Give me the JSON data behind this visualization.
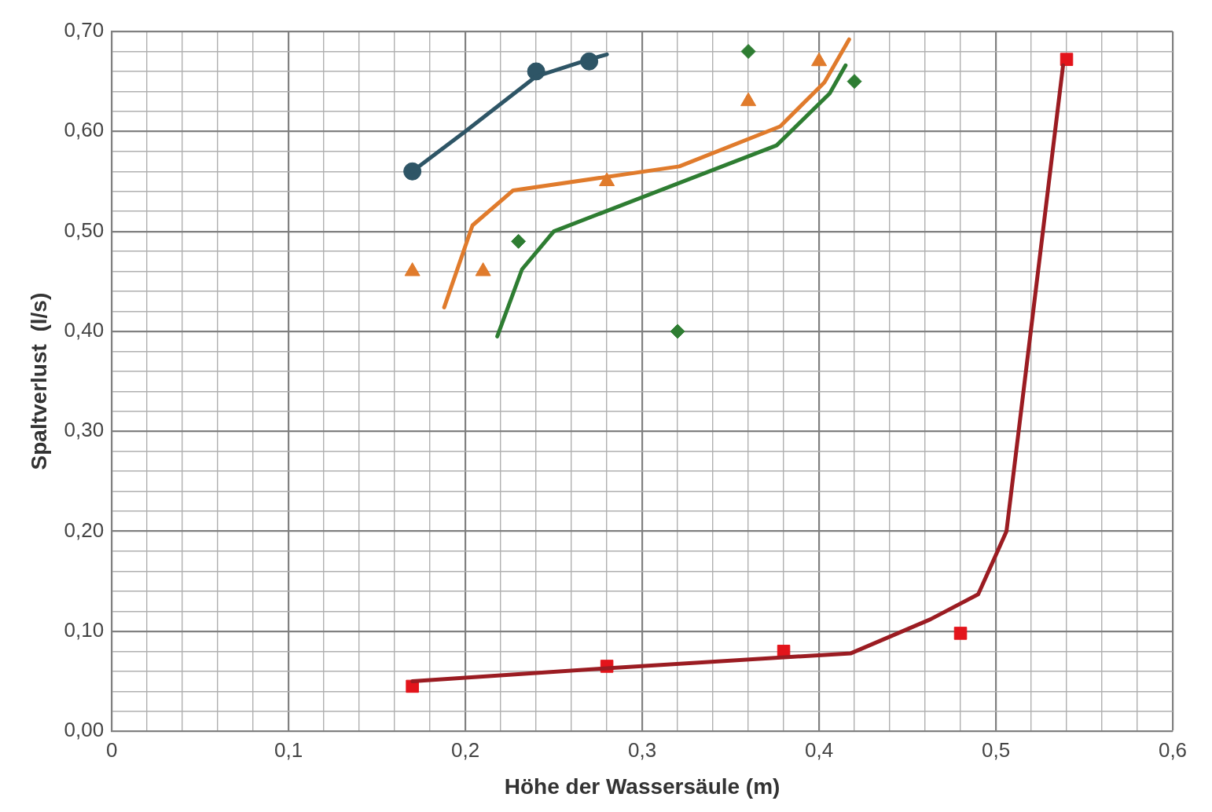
{
  "chart_data": {
    "type": "scatter",
    "xlabel": "Höhe der Wassersäule (m)",
    "ylabel": "Spaltverlust  (l/s)",
    "xlim": [
      0,
      0.6
    ],
    "ylim": [
      0,
      0.7
    ],
    "xticks": [
      0,
      {
        "value": 0.02,
        "label": null
      },
      {
        "value": 0.04,
        "label": null
      },
      {
        "value": 0.06,
        "label": null
      },
      {
        "value": 0.08,
        "label": null
      },
      {
        "value": 0.1,
        "label": "0,1"
      },
      {
        "value": 0.12,
        "label": null
      },
      {
        "value": 0.14,
        "label": null
      },
      {
        "value": 0.16,
        "label": null
      },
      {
        "value": 0.18,
        "label": null
      },
      {
        "value": 0.2,
        "label": "0,2"
      },
      {
        "value": 0.22,
        "label": null
      },
      {
        "value": 0.24,
        "label": null
      },
      {
        "value": 0.26,
        "label": null
      },
      {
        "value": 0.28,
        "label": null
      },
      {
        "value": 0.3,
        "label": "0,3"
      },
      {
        "value": 0.32,
        "label": null
      },
      {
        "value": 0.34,
        "label": null
      },
      {
        "value": 0.36,
        "label": null
      },
      {
        "value": 0.38,
        "label": null
      },
      {
        "value": 0.4,
        "label": "0,4"
      },
      {
        "value": 0.42,
        "label": null
      },
      {
        "value": 0.44,
        "label": null
      },
      {
        "value": 0.46,
        "label": null
      },
      {
        "value": 0.48,
        "label": null
      },
      {
        "value": 0.5,
        "label": "0,5"
      },
      {
        "value": 0.52,
        "label": null
      },
      {
        "value": 0.54,
        "label": null
      },
      {
        "value": 0.56,
        "label": null
      },
      {
        "value": 0.58,
        "label": null
      },
      {
        "value": 0.6,
        "label": "0,6"
      }
    ],
    "yticks": [
      {
        "value": 0,
        "label": "0,00"
      },
      {
        "value": 0.02,
        "label": null
      },
      {
        "value": 0.04,
        "label": null
      },
      {
        "value": 0.06,
        "label": null
      },
      {
        "value": 0.08,
        "label": null
      },
      {
        "value": 0.1,
        "label": "0,10"
      },
      {
        "value": 0.12,
        "label": null
      },
      {
        "value": 0.14,
        "label": null
      },
      {
        "value": 0.16,
        "label": null
      },
      {
        "value": 0.18,
        "label": null
      },
      {
        "value": 0.2,
        "label": "0,20"
      },
      {
        "value": 0.22,
        "label": null
      },
      {
        "value": 0.24,
        "label": null
      },
      {
        "value": 0.26,
        "label": null
      },
      {
        "value": 0.28,
        "label": null
      },
      {
        "value": 0.3,
        "label": "0,30"
      },
      {
        "value": 0.32,
        "label": null
      },
      {
        "value": 0.34,
        "label": null
      },
      {
        "value": 0.36,
        "label": null
      },
      {
        "value": 0.38,
        "label": null
      },
      {
        "value": 0.4,
        "label": "0,40"
      },
      {
        "value": 0.42,
        "label": null
      },
      {
        "value": 0.44,
        "label": null
      },
      {
        "value": 0.46,
        "label": null
      },
      {
        "value": 0.48,
        "label": null
      },
      {
        "value": 0.5,
        "label": "0,50"
      },
      {
        "value": 0.52,
        "label": null
      },
      {
        "value": 0.54,
        "label": null
      },
      {
        "value": 0.56,
        "label": null
      },
      {
        "value": 0.58,
        "label": null
      },
      {
        "value": 0.6,
        "label": "0,60"
      },
      {
        "value": 0.62,
        "label": null
      },
      {
        "value": 0.64,
        "label": null
      },
      {
        "value": 0.66,
        "label": null
      },
      {
        "value": 0.68,
        "label": null
      },
      {
        "value": 0.7,
        "label": "0,70"
      }
    ],
    "grid": true,
    "legend": false,
    "series": [
      {
        "type": "line",
        "color": "#2e5566",
        "marker": "none",
        "x": [
          0.17,
          0.2,
          0.24,
          0.27,
          0.28
        ],
        "values": [
          0.56,
          0.6,
          0.655,
          0.672,
          0.677
        ]
      },
      {
        "type": "scatter",
        "color": "#2e5566",
        "marker": "circle",
        "x": [
          0.17,
          0.24,
          0.27
        ],
        "values": [
          0.56,
          0.66,
          0.67
        ]
      },
      {
        "type": "line",
        "color": "#e07b2c",
        "marker": "none",
        "x": [
          0.188,
          0.204,
          0.227,
          0.321,
          0.378,
          0.403,
          0.417
        ],
        "values": [
          0.424,
          0.506,
          0.541,
          0.565,
          0.605,
          0.649,
          0.692
        ]
      },
      {
        "type": "scatter",
        "color": "#e07b2c",
        "marker": "triangle",
        "x": [
          0.17,
          0.21,
          0.28,
          0.36,
          0.4
        ],
        "values": [
          0.46,
          0.46,
          0.55,
          0.63,
          0.67
        ]
      },
      {
        "type": "line",
        "color": "#2e7d32",
        "marker": "none",
        "x": [
          0.218,
          0.232,
          0.25,
          0.376,
          0.406,
          0.415
        ],
        "values": [
          0.395,
          0.462,
          0.5,
          0.586,
          0.638,
          0.666
        ]
      },
      {
        "type": "scatter",
        "color": "#2e7d32",
        "marker": "diamond",
        "x": [
          0.23,
          0.32,
          0.36,
          0.42
        ],
        "values": [
          0.49,
          0.4,
          0.68,
          0.65
        ]
      },
      {
        "type": "line",
        "color": "#9b1c22",
        "marker": "none",
        "x": [
          0.17,
          0.28,
          0.418,
          0.463,
          0.49,
          0.506,
          0.538
        ],
        "values": [
          0.05,
          0.063,
          0.078,
          0.112,
          0.137,
          0.2,
          0.666
        ]
      },
      {
        "type": "scatter",
        "color": "#e3141b",
        "marker": "square",
        "x": [
          0.17,
          0.28,
          0.38,
          0.48,
          0.54
        ],
        "values": [
          0.045,
          0.065,
          0.08,
          0.098,
          0.672
        ]
      }
    ]
  }
}
